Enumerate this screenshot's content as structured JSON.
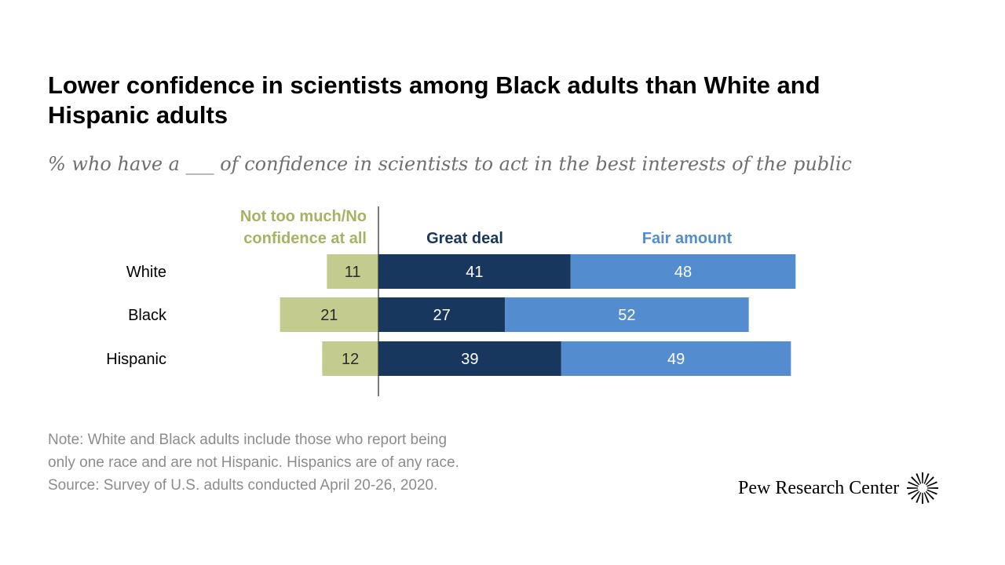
{
  "title": "Lower confidence in scientists among Black adults than White and Hispanic adults",
  "subtitle": "% who have a ___ of confidence in scientists to act in the best interests of the public",
  "note_lines": [
    "Note: White and Black adults include those who report being",
    "only one race and are not Hispanic. Hispanics are of any race.",
    "Source: Survey of U.S. adults conducted April 20-26, 2020."
  ],
  "brand": {
    "name": "Pew Research Center"
  },
  "chart_data": {
    "type": "bar",
    "orientation": "horizontal",
    "stacked": "diverging",
    "categories": [
      "White",
      "Black",
      "Hispanic"
    ],
    "series": [
      {
        "name": "Not too much/No confidence at all",
        "legend_lines": [
          "Not too much/No",
          "confidence at all"
        ],
        "values": [
          11,
          21,
          12
        ],
        "color": "#c3cb8e",
        "text_color": "#2b2b2b",
        "side": "negative"
      },
      {
        "name": "Great deal",
        "legend_lines": [
          "Great deal"
        ],
        "values": [
          41,
          27,
          39
        ],
        "color": "#17375e",
        "text_color": "#ffffff",
        "side": "positive"
      },
      {
        "name": "Fair amount",
        "legend_lines": [
          "Fair amount"
        ],
        "values": [
          48,
          52,
          49
        ],
        "color": "#538dd0",
        "text_color": "#ffffff",
        "side": "positive"
      }
    ],
    "legend_colors": [
      "#a8b262",
      "#17375e",
      "#538dd0"
    ],
    "data_labels": true,
    "grid": false,
    "legend_position": "top"
  }
}
